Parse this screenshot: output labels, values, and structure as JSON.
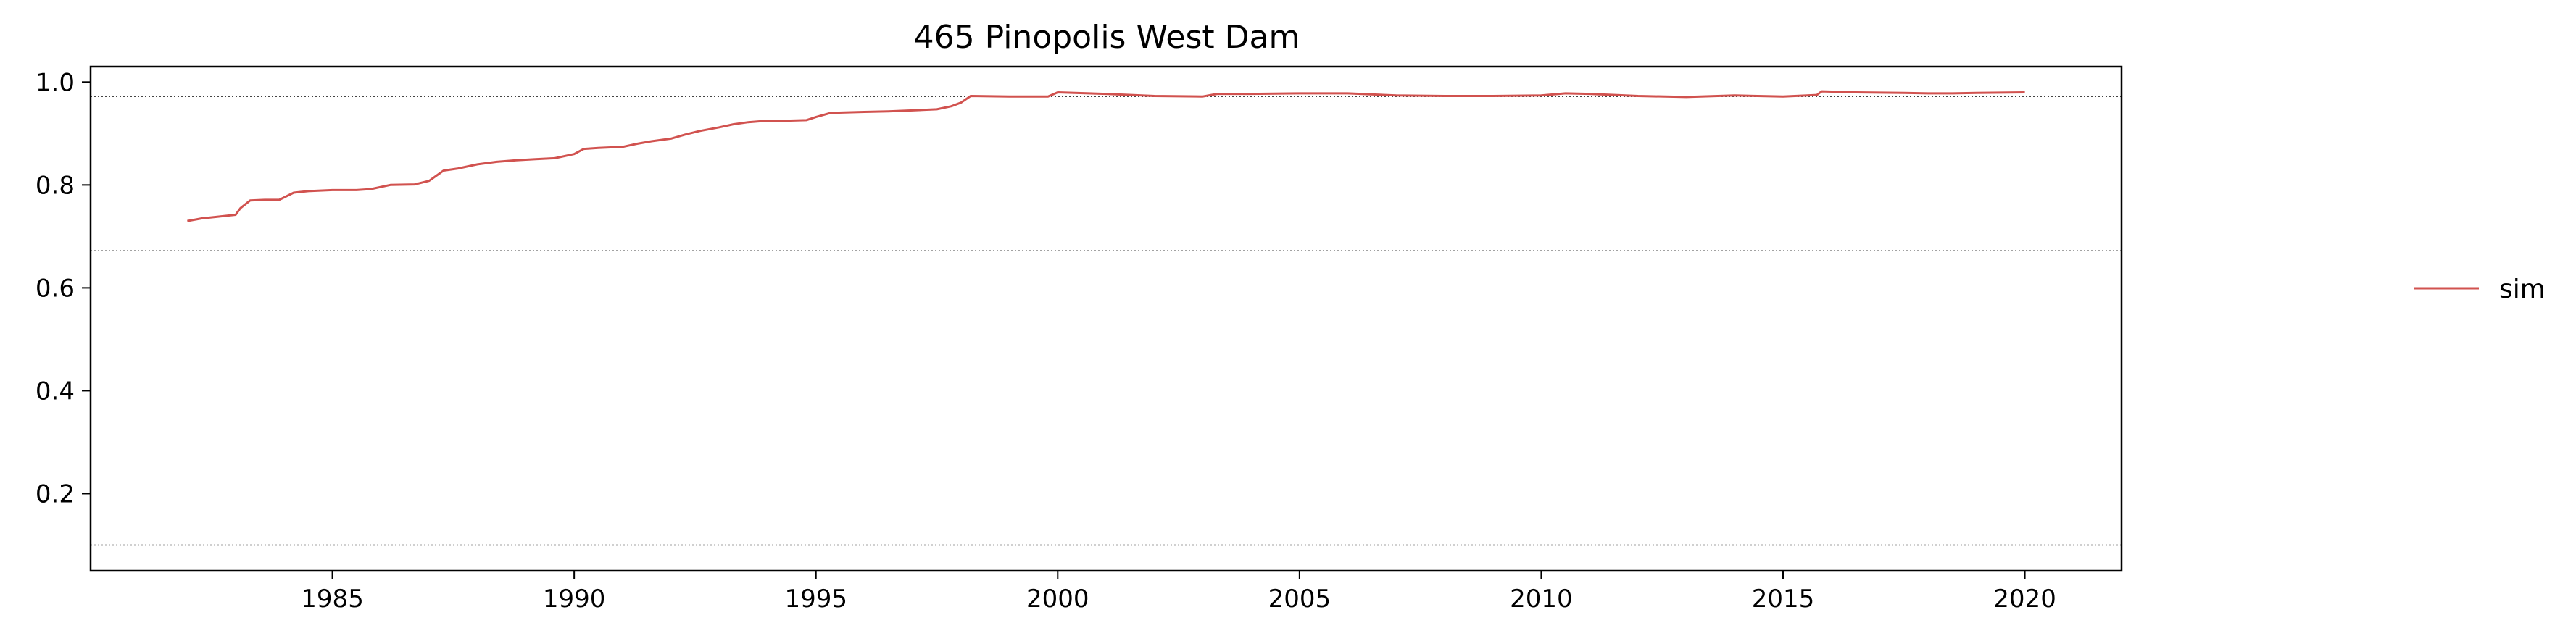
{
  "chart_data": {
    "type": "line",
    "title": "465  Pinopolis West Dam",
    "xlabel": "",
    "ylabel": "",
    "xlim": [
      1980.0,
      2022.0
    ],
    "ylim": [
      0.05,
      1.03
    ],
    "xticks": [
      1985,
      1990,
      1995,
      2000,
      2005,
      2010,
      2015,
      2020
    ],
    "yticks": [
      0.2,
      0.4,
      0.6,
      0.8,
      1.0
    ],
    "ytick_labels": [
      "0.2",
      "0.4",
      "0.6",
      "0.8",
      "1.0"
    ],
    "reference_lines": [
      0.972,
      0.672,
      0.1
    ],
    "grid": false,
    "legend_position": "right",
    "series": [
      {
        "name": "sim",
        "color": "#d1524f",
        "x": [
          1982.0,
          1982.3,
          1982.6,
          1983.0,
          1983.1,
          1983.3,
          1983.6,
          1983.9,
          1984.2,
          1984.5,
          1985.0,
          1985.5,
          1985.8,
          1986.2,
          1986.7,
          1987.0,
          1987.3,
          1987.6,
          1988.0,
          1988.4,
          1988.8,
          1989.2,
          1989.6,
          1990.0,
          1990.2,
          1990.5,
          1991.0,
          1991.3,
          1991.6,
          1992.0,
          1992.3,
          1992.6,
          1993.0,
          1993.3,
          1993.6,
          1994.0,
          1994.4,
          1994.8,
          1995.0,
          1995.3,
          1995.6,
          1996.0,
          1996.5,
          1997.0,
          1997.5,
          1997.8,
          1998.0,
          1998.2,
          1999.0,
          1999.8,
          2000.0,
          2001.0,
          2002.0,
          2003.0,
          2003.3,
          2004.0,
          2005.0,
          2006.0,
          2007.0,
          2008.0,
          2009.0,
          2010.0,
          2010.5,
          2011.0,
          2012.0,
          2013.0,
          2014.0,
          2015.0,
          2015.7,
          2015.8,
          2016.5,
          2017.5,
          2018.0,
          2018.5,
          2019.0,
          2020.0
        ],
        "values": [
          0.73,
          0.735,
          0.738,
          0.742,
          0.755,
          0.77,
          0.771,
          0.771,
          0.785,
          0.788,
          0.79,
          0.79,
          0.792,
          0.8,
          0.801,
          0.808,
          0.828,
          0.832,
          0.84,
          0.845,
          0.848,
          0.85,
          0.852,
          0.86,
          0.87,
          0.872,
          0.874,
          0.88,
          0.885,
          0.89,
          0.898,
          0.905,
          0.912,
          0.918,
          0.922,
          0.925,
          0.925,
          0.926,
          0.932,
          0.94,
          0.941,
          0.942,
          0.943,
          0.945,
          0.947,
          0.953,
          0.96,
          0.973,
          0.972,
          0.972,
          0.98,
          0.977,
          0.973,
          0.972,
          0.977,
          0.977,
          0.978,
          0.978,
          0.974,
          0.973,
          0.973,
          0.974,
          0.978,
          0.977,
          0.973,
          0.971,
          0.974,
          0.972,
          0.975,
          0.982,
          0.98,
          0.979,
          0.978,
          0.978,
          0.979,
          0.98
        ]
      }
    ]
  }
}
